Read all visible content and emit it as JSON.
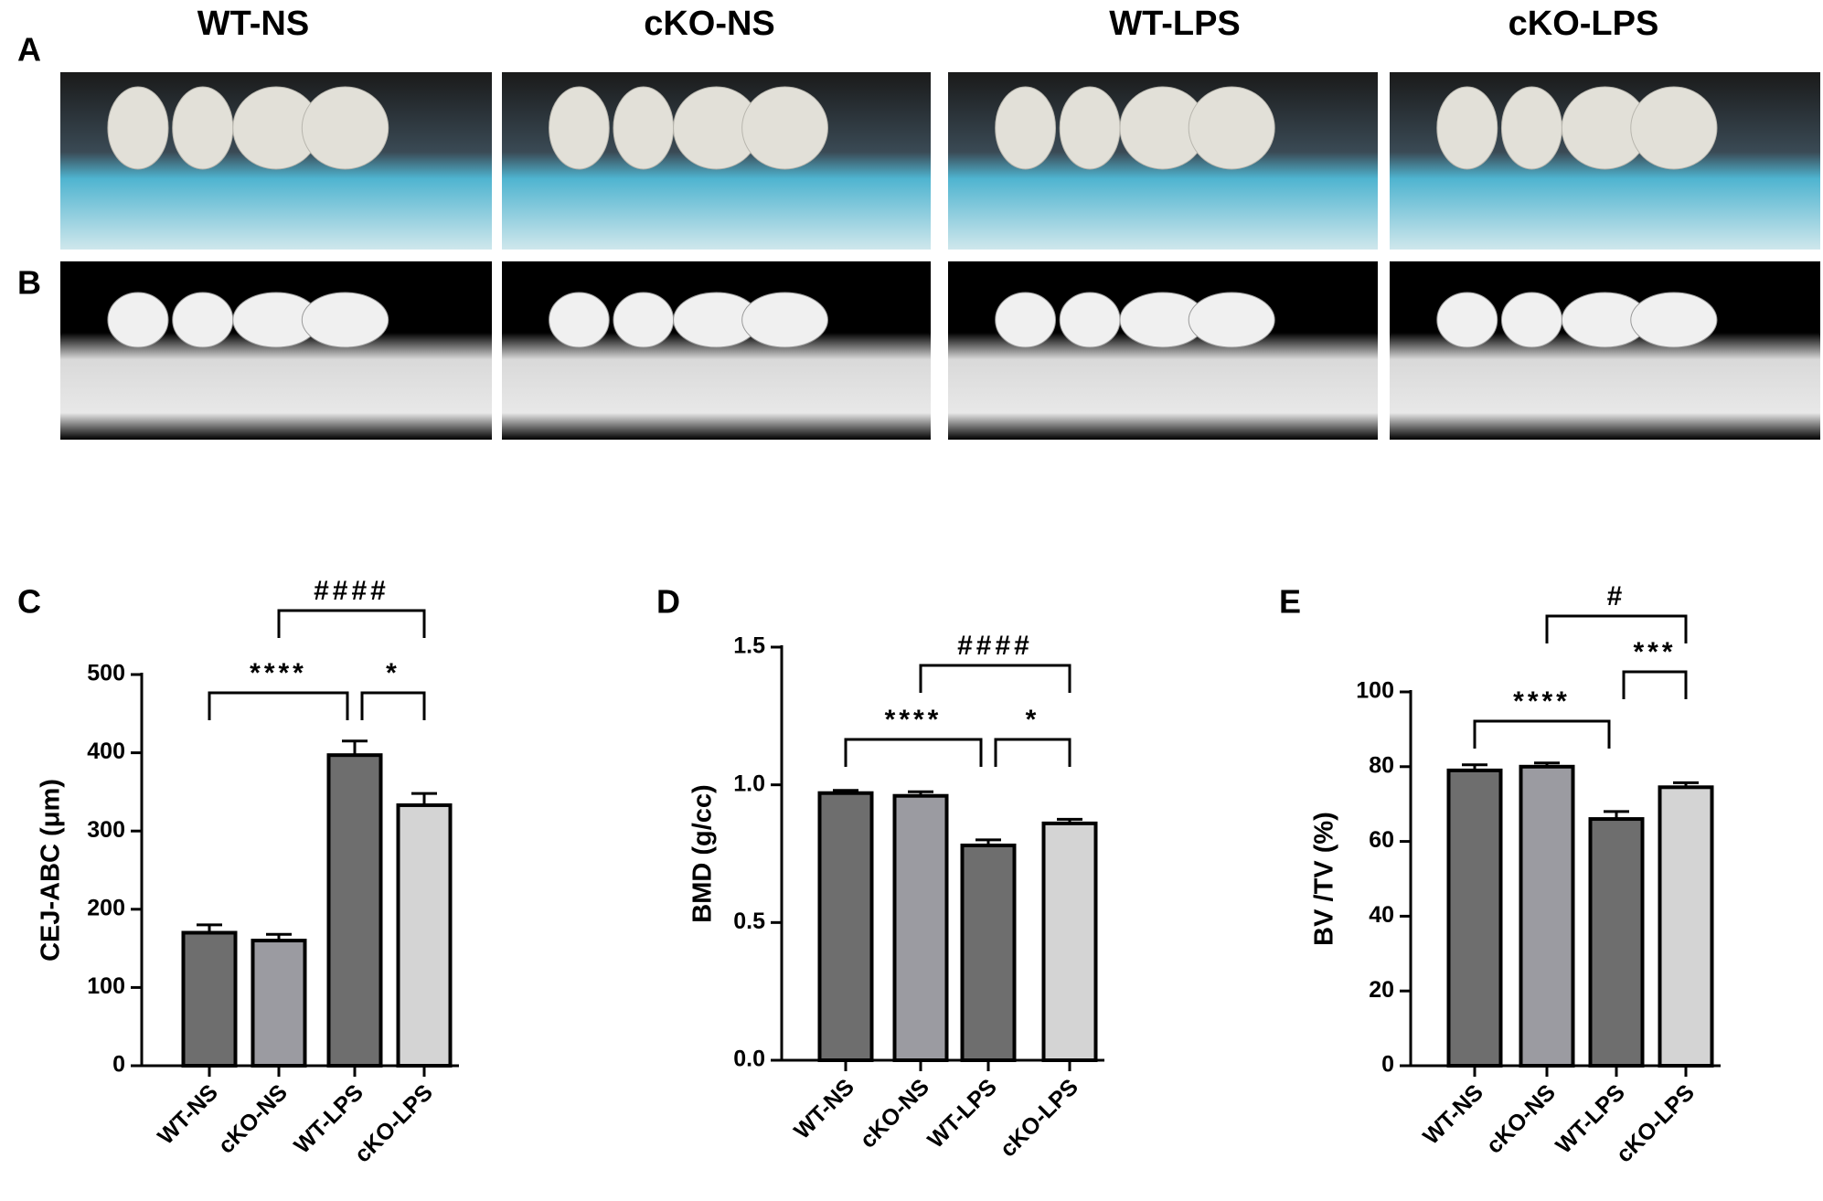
{
  "figure": {
    "panel_labels": [
      "A",
      "B",
      "C",
      "D",
      "E"
    ],
    "column_headers": [
      "WT-NS",
      "cKO-NS",
      "WT-LPS",
      "cKO-LPS"
    ]
  },
  "chart_data": [
    {
      "type": "bar",
      "y_label": "CEJ-ABC (μm)",
      "categories": [
        "WT-NS",
        "cKO-NS",
        "WT-LPS",
        "cKO-LPS"
      ],
      "values": [
        170,
        160,
        397,
        333
      ],
      "errors": [
        10,
        8,
        18,
        15
      ],
      "colors": [
        "#6e6e6e",
        "#9b9ba1",
        "#6e6e6e",
        "#d4d4d4"
      ],
      "ylim": [
        0,
        500
      ],
      "yticks": [
        0,
        100,
        200,
        300,
        400,
        500
      ],
      "annotations": [
        "####",
        "****",
        "*"
      ]
    },
    {
      "type": "bar",
      "y_label": "BMD (g/cc)",
      "categories": [
        "WT-NS",
        "cKO-NS",
        "WT-LPS",
        "cKO-LPS"
      ],
      "values": [
        0.97,
        0.96,
        0.78,
        0.86
      ],
      "errors": [
        0.01,
        0.015,
        0.02,
        0.015
      ],
      "colors": [
        "#6e6e6e",
        "#9b9ba1",
        "#6e6e6e",
        "#d4d4d4"
      ],
      "ylim": [
        0,
        1.5
      ],
      "yticks": [
        {
          "value": 0,
          "label": "0.0"
        },
        0.5,
        {
          "value": 1,
          "label": "1.0"
        },
        1.5
      ],
      "annotations": [
        "####",
        "****",
        "*"
      ]
    },
    {
      "type": "bar",
      "y_label": "BV /TV (%)",
      "categories": [
        "WT-NS",
        "cKO-NS",
        "WT-LPS",
        "cKO-LPS"
      ],
      "values": [
        79,
        80,
        66,
        74.5
      ],
      "errors": [
        1.5,
        1,
        2,
        1.2
      ],
      "colors": [
        "#6e6e6e",
        "#9b9ba1",
        "#6e6e6e",
        "#d4d4d4"
      ],
      "ylim": [
        0,
        100
      ],
      "yticks": [
        0,
        20,
        40,
        60,
        80,
        100
      ],
      "annotations": [
        "#",
        "****",
        "***"
      ]
    }
  ]
}
